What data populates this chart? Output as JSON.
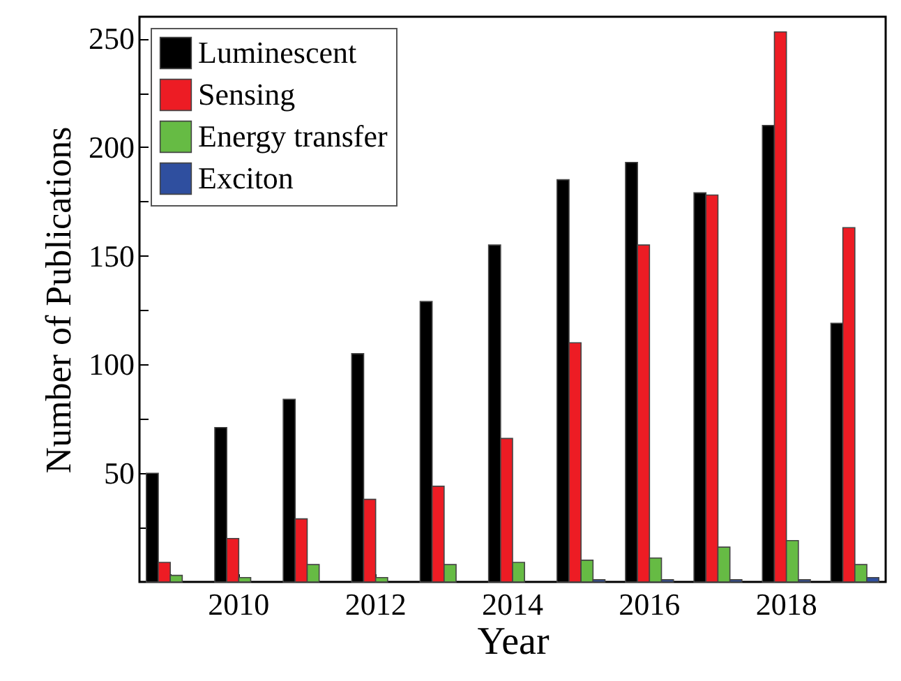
{
  "chart_data": {
    "type": "bar",
    "xlabel": "Year",
    "ylabel": "Number of Publications",
    "categories": [
      null,
      "2010",
      null,
      "2012",
      null,
      "2014",
      null,
      "2016",
      null,
      "2018",
      null
    ],
    "series": [
      {
        "name": "Luminescent",
        "color": "#000000",
        "values": [
          50,
          71,
          84,
          105,
          129,
          155,
          185,
          193,
          179,
          210,
          119
        ]
      },
      {
        "name": "Sensing",
        "color": "#ed1c24",
        "values": [
          9,
          20,
          29,
          38,
          44,
          66,
          110,
          155,
          178,
          253,
          163
        ]
      },
      {
        "name": "Energy transfer",
        "color": "#66bb44",
        "values": [
          3,
          2,
          8,
          2,
          8,
          9,
          10,
          11,
          16,
          19,
          8
        ]
      },
      {
        "name": "Exciton",
        "color": "#2f4f9f",
        "values": [
          0,
          0,
          0,
          0,
          0,
          0,
          1,
          1,
          1,
          1,
          2
        ]
      }
    ],
    "ylim": [
      0,
      260
    ],
    "yticks": [
      {
        "value": 25,
        "label": null
      },
      50,
      {
        "value": 75,
        "label": null
      },
      100,
      {
        "value": 125,
        "label": null
      },
      150,
      {
        "value": 175,
        "label": null
      },
      200,
      {
        "value": 225,
        "label": null
      },
      250
    ],
    "grid": false,
    "legend": "top left"
  }
}
